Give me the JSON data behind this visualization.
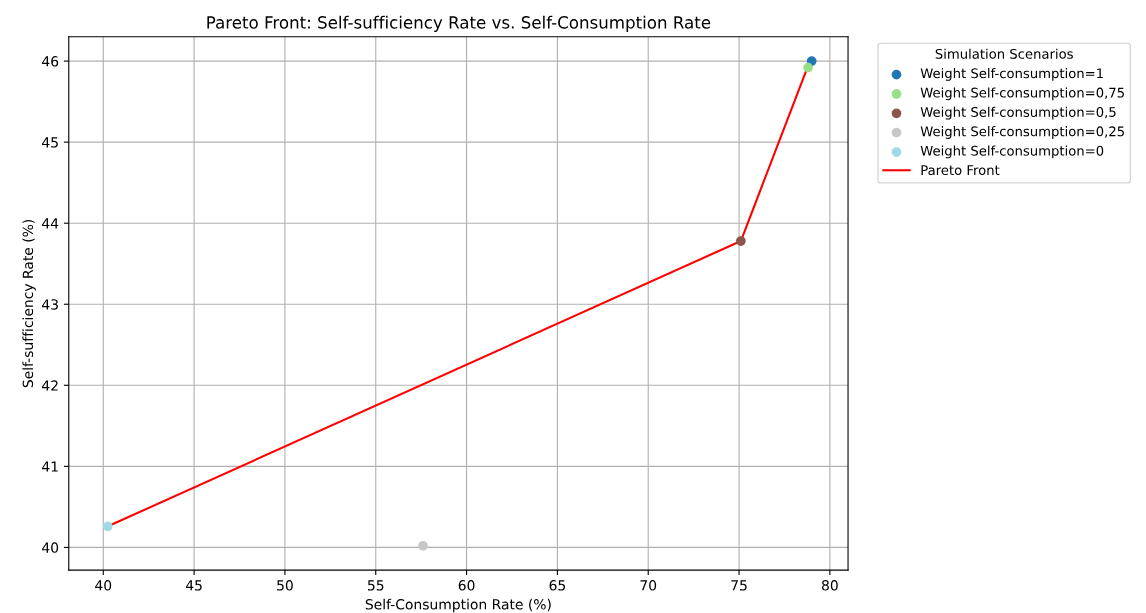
{
  "chart_data": {
    "type": "scatter",
    "title": "Pareto Front: Self-sufficiency Rate vs. Self-Consumption Rate",
    "xlabel": "Self-Consumption Rate (%)",
    "ylabel": "Self-sufficiency Rate (%)",
    "legend_title": "Simulation Scenarios",
    "series": [
      {
        "name": "Weight Self-consumption=1",
        "color": "#1f77b4",
        "x": [
          79.0
        ],
        "values": [
          46.0
        ]
      },
      {
        "name": "Weight Self-consumption=0,75",
        "color": "#98df8a",
        "x": [
          78.8
        ],
        "values": [
          45.92
        ]
      },
      {
        "name": "Weight Self-consumption=0,5",
        "color": "#8c564b",
        "x": [
          75.1
        ],
        "values": [
          43.78
        ]
      },
      {
        "name": "Weight Self-consumption=0,25",
        "color": "#c7c7c7",
        "x": [
          57.6
        ],
        "values": [
          40.02
        ]
      },
      {
        "name": "Weight Self-consumption=0",
        "color": "#9edae5",
        "x": [
          40.25
        ],
        "values": [
          40.26
        ]
      },
      {
        "name": "Pareto Front",
        "type": "line",
        "marker": "none",
        "color": "#ff0000",
        "x": [
          40.25,
          75.1,
          78.9
        ],
        "values": [
          40.26,
          43.78,
          46.0
        ]
      }
    ],
    "xlim": [
      38.1,
      81.0
    ],
    "ylim": [
      39.72,
      46.3
    ],
    "xticks": [
      40,
      45,
      50,
      55,
      60,
      65,
      70,
      75,
      80
    ],
    "yticks": [
      40,
      41,
      42,
      43,
      44,
      45,
      46
    ],
    "grid": true,
    "legend": "top right",
    "marker": "circle"
  }
}
